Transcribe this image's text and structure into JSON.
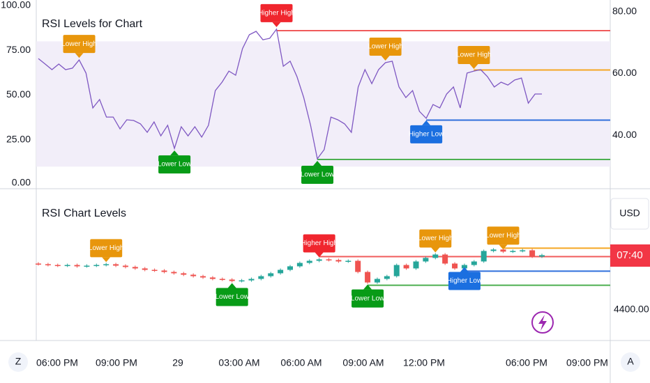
{
  "chart_data": [
    {
      "type": "line",
      "title": "RSI Levels for Chart",
      "color": "#7e57c2",
      "values": [
        70.4,
        67.3,
        64.2,
        67.3,
        64.2,
        65.0,
        69.6,
        62.3,
        42.8,
        47.5,
        37.7,
        37.7,
        31.1,
        36.2,
        35.8,
        33.9,
        29.2,
        35.0,
        27.2,
        33.1,
        20.2,
        32.3,
        27.2,
        32.3,
        26.5,
        33.1,
        52.5,
        57.2,
        63.4,
        61.1,
        75.9,
        83.7,
        85.6,
        80.9,
        81.7,
        86.8,
        66.1,
        68.9,
        60.3,
        48.6,
        33.1,
        14.4,
        19.5,
        37.7,
        36.2,
        33.9,
        29.2,
        54.5,
        64.2,
        56.4,
        64.2,
        68.1,
        68.9,
        54.5,
        48.6,
        52.5,
        40.9,
        37.0,
        44.7,
        42.8,
        50.6,
        54.5,
        42.8,
        62.3,
        63.4,
        64.2,
        60.3,
        54.5,
        57.2,
        55.6,
        58.4,
        59.5,
        45.5,
        50.6,
        50.6
      ],
      "ylim": [
        0,
        100
      ],
      "yticks": [
        {
          "value": 100,
          "label": "100.00"
        },
        {
          "value": 75,
          "label": "75.00"
        },
        {
          "value": 50,
          "label": "50.00"
        },
        {
          "value": 25,
          "label": "25.00"
        },
        {
          "value": 0,
          "label": "0.00"
        }
      ],
      "y2lim": [
        24,
        82
      ],
      "y2ticks": [
        {
          "value": 80,
          "label": "80.00"
        },
        {
          "value": 60,
          "label": "60.00"
        },
        {
          "value": 40,
          "label": "40.00"
        }
      ],
      "band": [
        10,
        80
      ],
      "band_color": "#f2eef9",
      "annotations": [
        {
          "label": "Lower High",
          "x": 6,
          "position": "above",
          "color": "#e8960c"
        },
        {
          "label": "Lower Low",
          "x": 20,
          "position": "below",
          "color": "#089b17"
        },
        {
          "label": "Higher High",
          "x": 35,
          "position": "above",
          "color": "#f0262e"
        },
        {
          "label": "Lower Low",
          "x": 41,
          "position": "below",
          "color": "#089b17"
        },
        {
          "label": "Lower High",
          "x": 51,
          "position": "above",
          "color": "#e8960c"
        },
        {
          "label": "Higher Low",
          "x": 57,
          "position": "below",
          "color": "#1b6fe0"
        },
        {
          "label": "Lower High",
          "x": 64,
          "position": "above",
          "color": "#e8960c"
        }
      ],
      "levels": [
        {
          "value": 86,
          "color": "#f05b5b",
          "from": 35
        },
        {
          "value": 64,
          "color": "#f5a623",
          "from": 64
        },
        {
          "value": 36,
          "color": "#2f6fdc",
          "from": 57
        },
        {
          "value": 14,
          "color": "#4caf50",
          "from": 41
        }
      ]
    },
    {
      "type": "candlestick",
      "title": "RSI Chart Levels",
      "up_color": "#26a69a",
      "down_color": "#ef5350",
      "open": [
        4435.1,
        4434.6,
        4434.0,
        4433.5,
        4434.0,
        4433.0,
        4433.5,
        4434.0,
        4434.6,
        4433.5,
        4432.5,
        4431.4,
        4430.3,
        4429.8,
        4428.7,
        4427.7,
        4426.6,
        4425.5,
        4424.5,
        4423.4,
        4422.9,
        4421.8,
        4422.3,
        4423.4,
        4425.5,
        4427.7,
        4430.3,
        4433.0,
        4435.6,
        4437.2,
        4438.3,
        4437.8,
        4436.7,
        4437.2,
        4428.7,
        4420.7,
        4423.4,
        4425.5,
        4434.0,
        4431.4,
        4436.7,
        4439.4,
        4442.0,
        4435.1,
        4431.4,
        4434.0,
        4436.7,
        4444.7,
        4445.8,
        4444.2,
        4444.7,
        4445.2,
        4440.4
      ],
      "close": [
        4434.6,
        4434.0,
        4433.5,
        4434.0,
        4433.0,
        4433.5,
        4434.0,
        4434.6,
        4433.5,
        4432.5,
        4431.4,
        4430.3,
        4429.8,
        4428.7,
        4427.7,
        4426.6,
        4425.5,
        4424.5,
        4423.4,
        4422.9,
        4421.8,
        4422.3,
        4423.4,
        4425.5,
        4427.7,
        4430.3,
        4433.0,
        4435.6,
        4437.2,
        4438.3,
        4437.8,
        4436.7,
        4437.2,
        4428.7,
        4420.7,
        4423.4,
        4425.5,
        4434.0,
        4431.4,
        4436.7,
        4439.4,
        4442.0,
        4435.1,
        4431.4,
        4434.0,
        4436.7,
        4444.7,
        4445.8,
        4444.2,
        4444.7,
        4445.2,
        4440.4,
        4441.5
      ],
      "ylim": [
        4377,
        4490
      ],
      "yticks": [
        {
          "value": 4400,
          "label": "4400.00"
        }
      ],
      "annotations": [
        {
          "label": "Lower High",
          "x": 7,
          "position": "above",
          "color": "#e8960c"
        },
        {
          "label": "Lower Low",
          "x": 20,
          "position": "below",
          "color": "#089b17"
        },
        {
          "label": "Higher High",
          "x": 29,
          "position": "above",
          "color": "#f0262e"
        },
        {
          "label": "Lower Low",
          "x": 34,
          "position": "below",
          "color": "#089b17"
        },
        {
          "label": "Lower High",
          "x": 41,
          "position": "above",
          "color": "#e8960c"
        },
        {
          "label": "Higher Low",
          "x": 44,
          "position": "below",
          "color": "#1b6fe0"
        },
        {
          "label": "Lower High",
          "x": 48,
          "position": "above",
          "color": "#e8960c"
        }
      ],
      "levels": [
        {
          "value": 4446.8,
          "color": "#f5a623",
          "from": 48
        },
        {
          "value": 4440.4,
          "color": "#f05b5b",
          "from": 29
        },
        {
          "value": 4429.3,
          "color": "#2f6fdc",
          "from": 44
        },
        {
          "value": 4418.6,
          "color": "#4caf50",
          "from": 34
        }
      ]
    }
  ],
  "time_axis": [
    "06:00 PM",
    "09:00 PM",
    "29",
    "03:00 AM",
    "06:00 AM",
    "09:00 AM",
    "12:00 PM",
    "06:00 PM",
    "09:00 PM"
  ],
  "currency": "USD",
  "countdown": "07:40",
  "buttons": [
    "Z",
    "A"
  ]
}
